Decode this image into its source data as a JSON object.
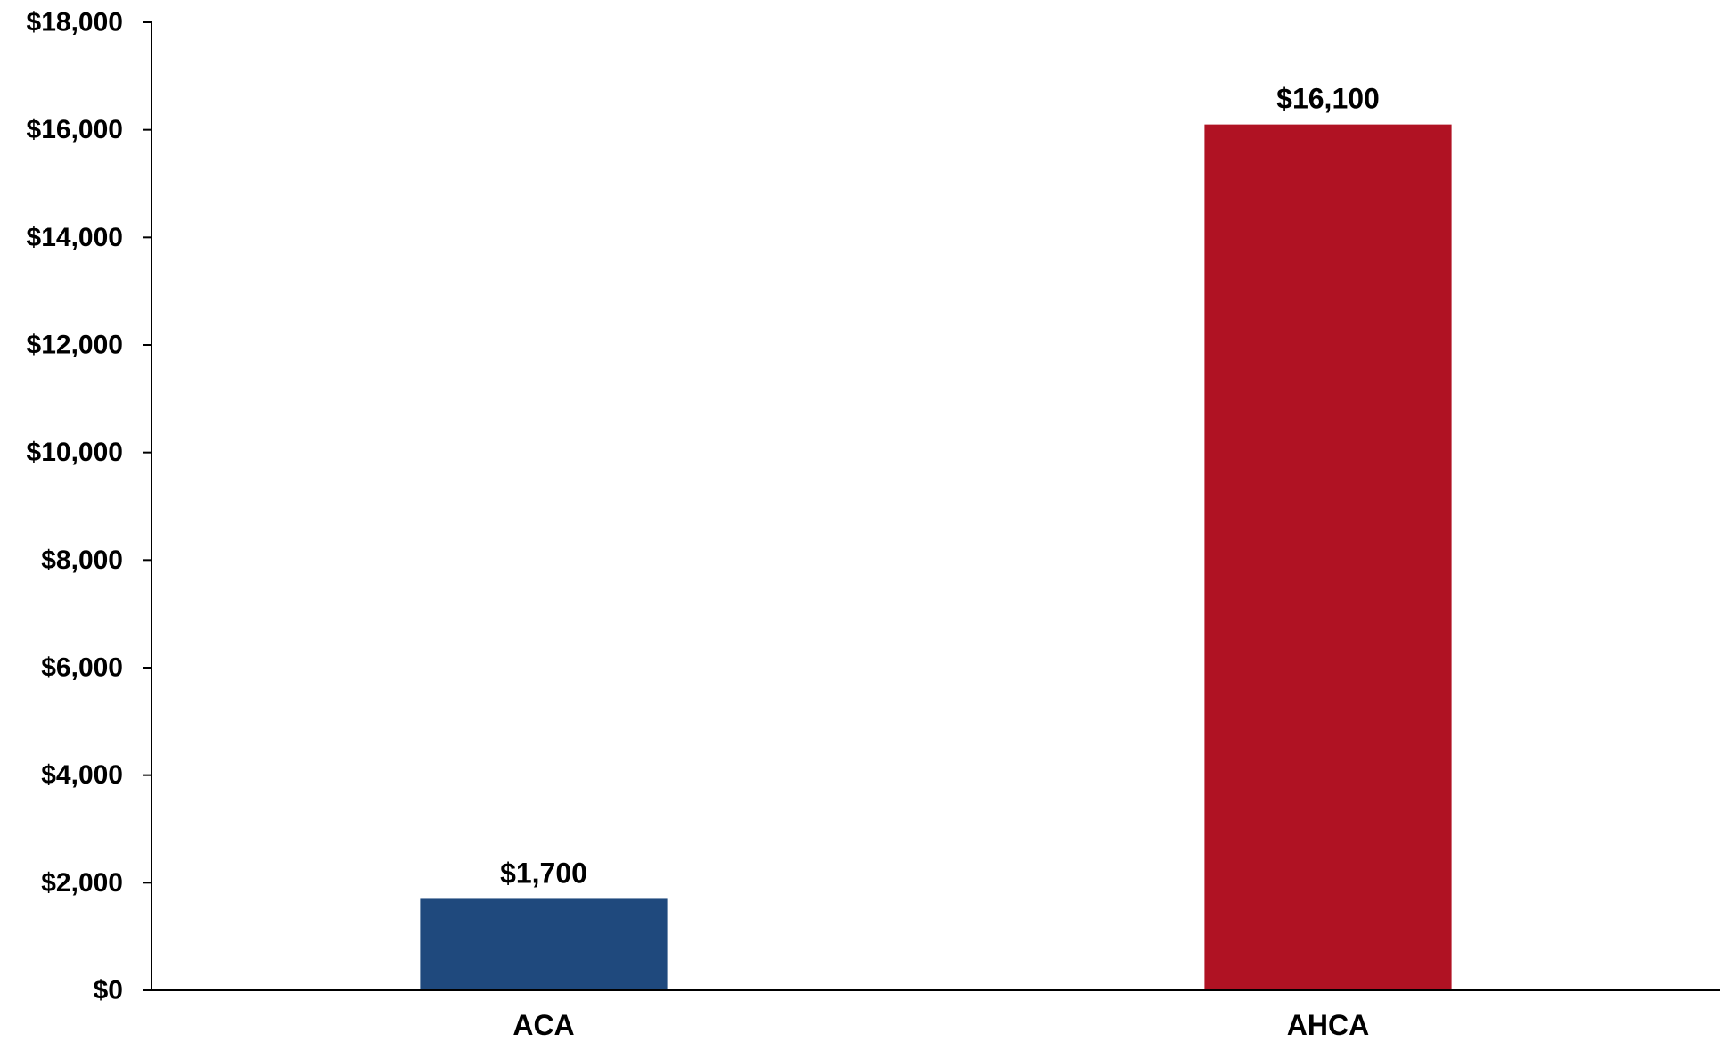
{
  "chart_data": {
    "type": "bar",
    "categories": [
      "ACA",
      "AHCA"
    ],
    "values": [
      1700,
      16100
    ],
    "data_labels": [
      "$1,700",
      "$16,100"
    ],
    "colors": [
      "#1f497d",
      "#b01223"
    ],
    "ylim": [
      0,
      18000
    ],
    "y_ticks": [
      0,
      2000,
      4000,
      6000,
      8000,
      10000,
      12000,
      14000,
      16000,
      18000
    ],
    "y_tick_labels": [
      "$0",
      "$2,000",
      "$4,000",
      "$6,000",
      "$8,000",
      "$10,000",
      "$12,000",
      "$14,000",
      "$16,000",
      "$18,000"
    ],
    "grid": false,
    "legend": "none"
  }
}
